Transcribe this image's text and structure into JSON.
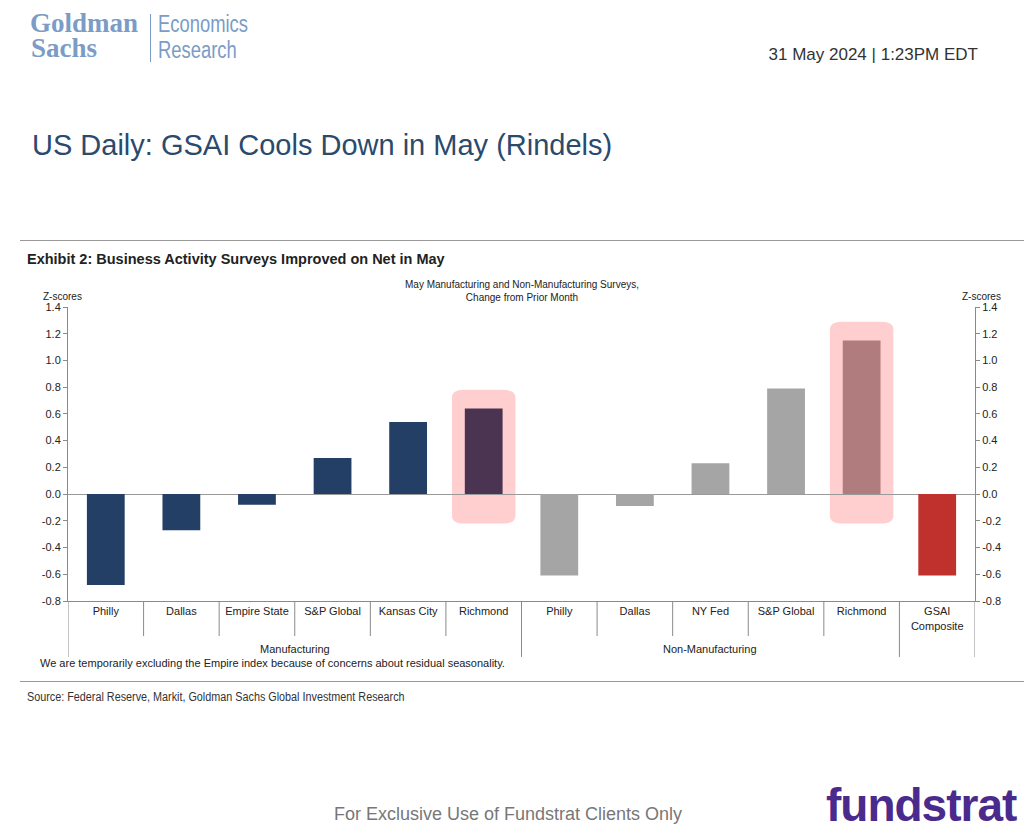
{
  "header": {
    "brand": [
      "Goldman",
      "Sachs"
    ],
    "division": [
      "Economics",
      "Research"
    ],
    "date": "31 May 2024 | 1:23PM EDT"
  },
  "title": "US Daily: GSAI Cools Down in May (Rindels)",
  "chart_data": {
    "type": "bar",
    "title": "Exhibit 2: Business Activity Surveys Improved on Net in May",
    "subtitle": "May Manufacturing and Non-Manufacturing Surveys,\nChange from Prior Month",
    "ylabel": "Z-scores",
    "y2label": "Z-scores",
    "categories": [
      "Philly",
      "Dallas",
      "Empire State",
      "S&P Global",
      "Kansas City",
      "Richmond",
      "Philly",
      "Dallas",
      "NY Fed",
      "S&P Global",
      "Richmond",
      "GSAI\nComposite"
    ],
    "category_groups": [
      "Manufacturing",
      "Manufacturing",
      "Manufacturing",
      "Manufacturing",
      "Manufacturing",
      "Manufacturing",
      "Non-Manufacturing",
      "Non-Manufacturing",
      "Non-Manufacturing",
      "Non-Manufacturing",
      "Non-Manufacturing",
      null
    ],
    "values": [
      -0.68,
      -0.27,
      -0.08,
      0.27,
      0.54,
      0.64,
      -0.61,
      -0.09,
      0.23,
      0.79,
      1.15,
      -0.61
    ],
    "colors": [
      "#243f66",
      "#243f66",
      "#243f66",
      "#243f66",
      "#243f66",
      "#4b3452",
      "#a5a5a5",
      "#a5a5a5",
      "#a5a5a5",
      "#a5a5a5",
      "#b07c7e",
      "#c0302c"
    ],
    "highlight": [
      false,
      false,
      false,
      false,
      false,
      true,
      false,
      false,
      false,
      false,
      true,
      false
    ],
    "ylim": [
      -0.8,
      1.4
    ],
    "yticks": [
      -0.8,
      -0.6,
      -0.4,
      -0.2,
      {
        "value": 0,
        "label": "0.0"
      },
      0.2,
      0.4,
      0.6,
      0.8,
      {
        "value": 1,
        "label": "1.0"
      },
      1.2,
      1.4
    ],
    "y2lim": [
      -0.8,
      1.4
    ],
    "y2ticks": [
      -0.8,
      -0.6,
      -0.4,
      -0.2,
      {
        "value": 0,
        "label": "0.0"
      },
      0.2,
      0.4,
      0.6,
      0.8,
      {
        "value": 1,
        "label": "1.0"
      },
      1.2,
      1.4
    ],
    "grid": false,
    "data_labels": false,
    "note": "We are temporarily excluding the Empire index because of concerns about residual seasonality.",
    "source": "Source: Federal Reserve, Markit, Goldman Sachs Global Investment Research"
  },
  "footer": {
    "notice": "For Exclusive Use of Fundstrat Clients Only",
    "logo": "fundstrat"
  }
}
